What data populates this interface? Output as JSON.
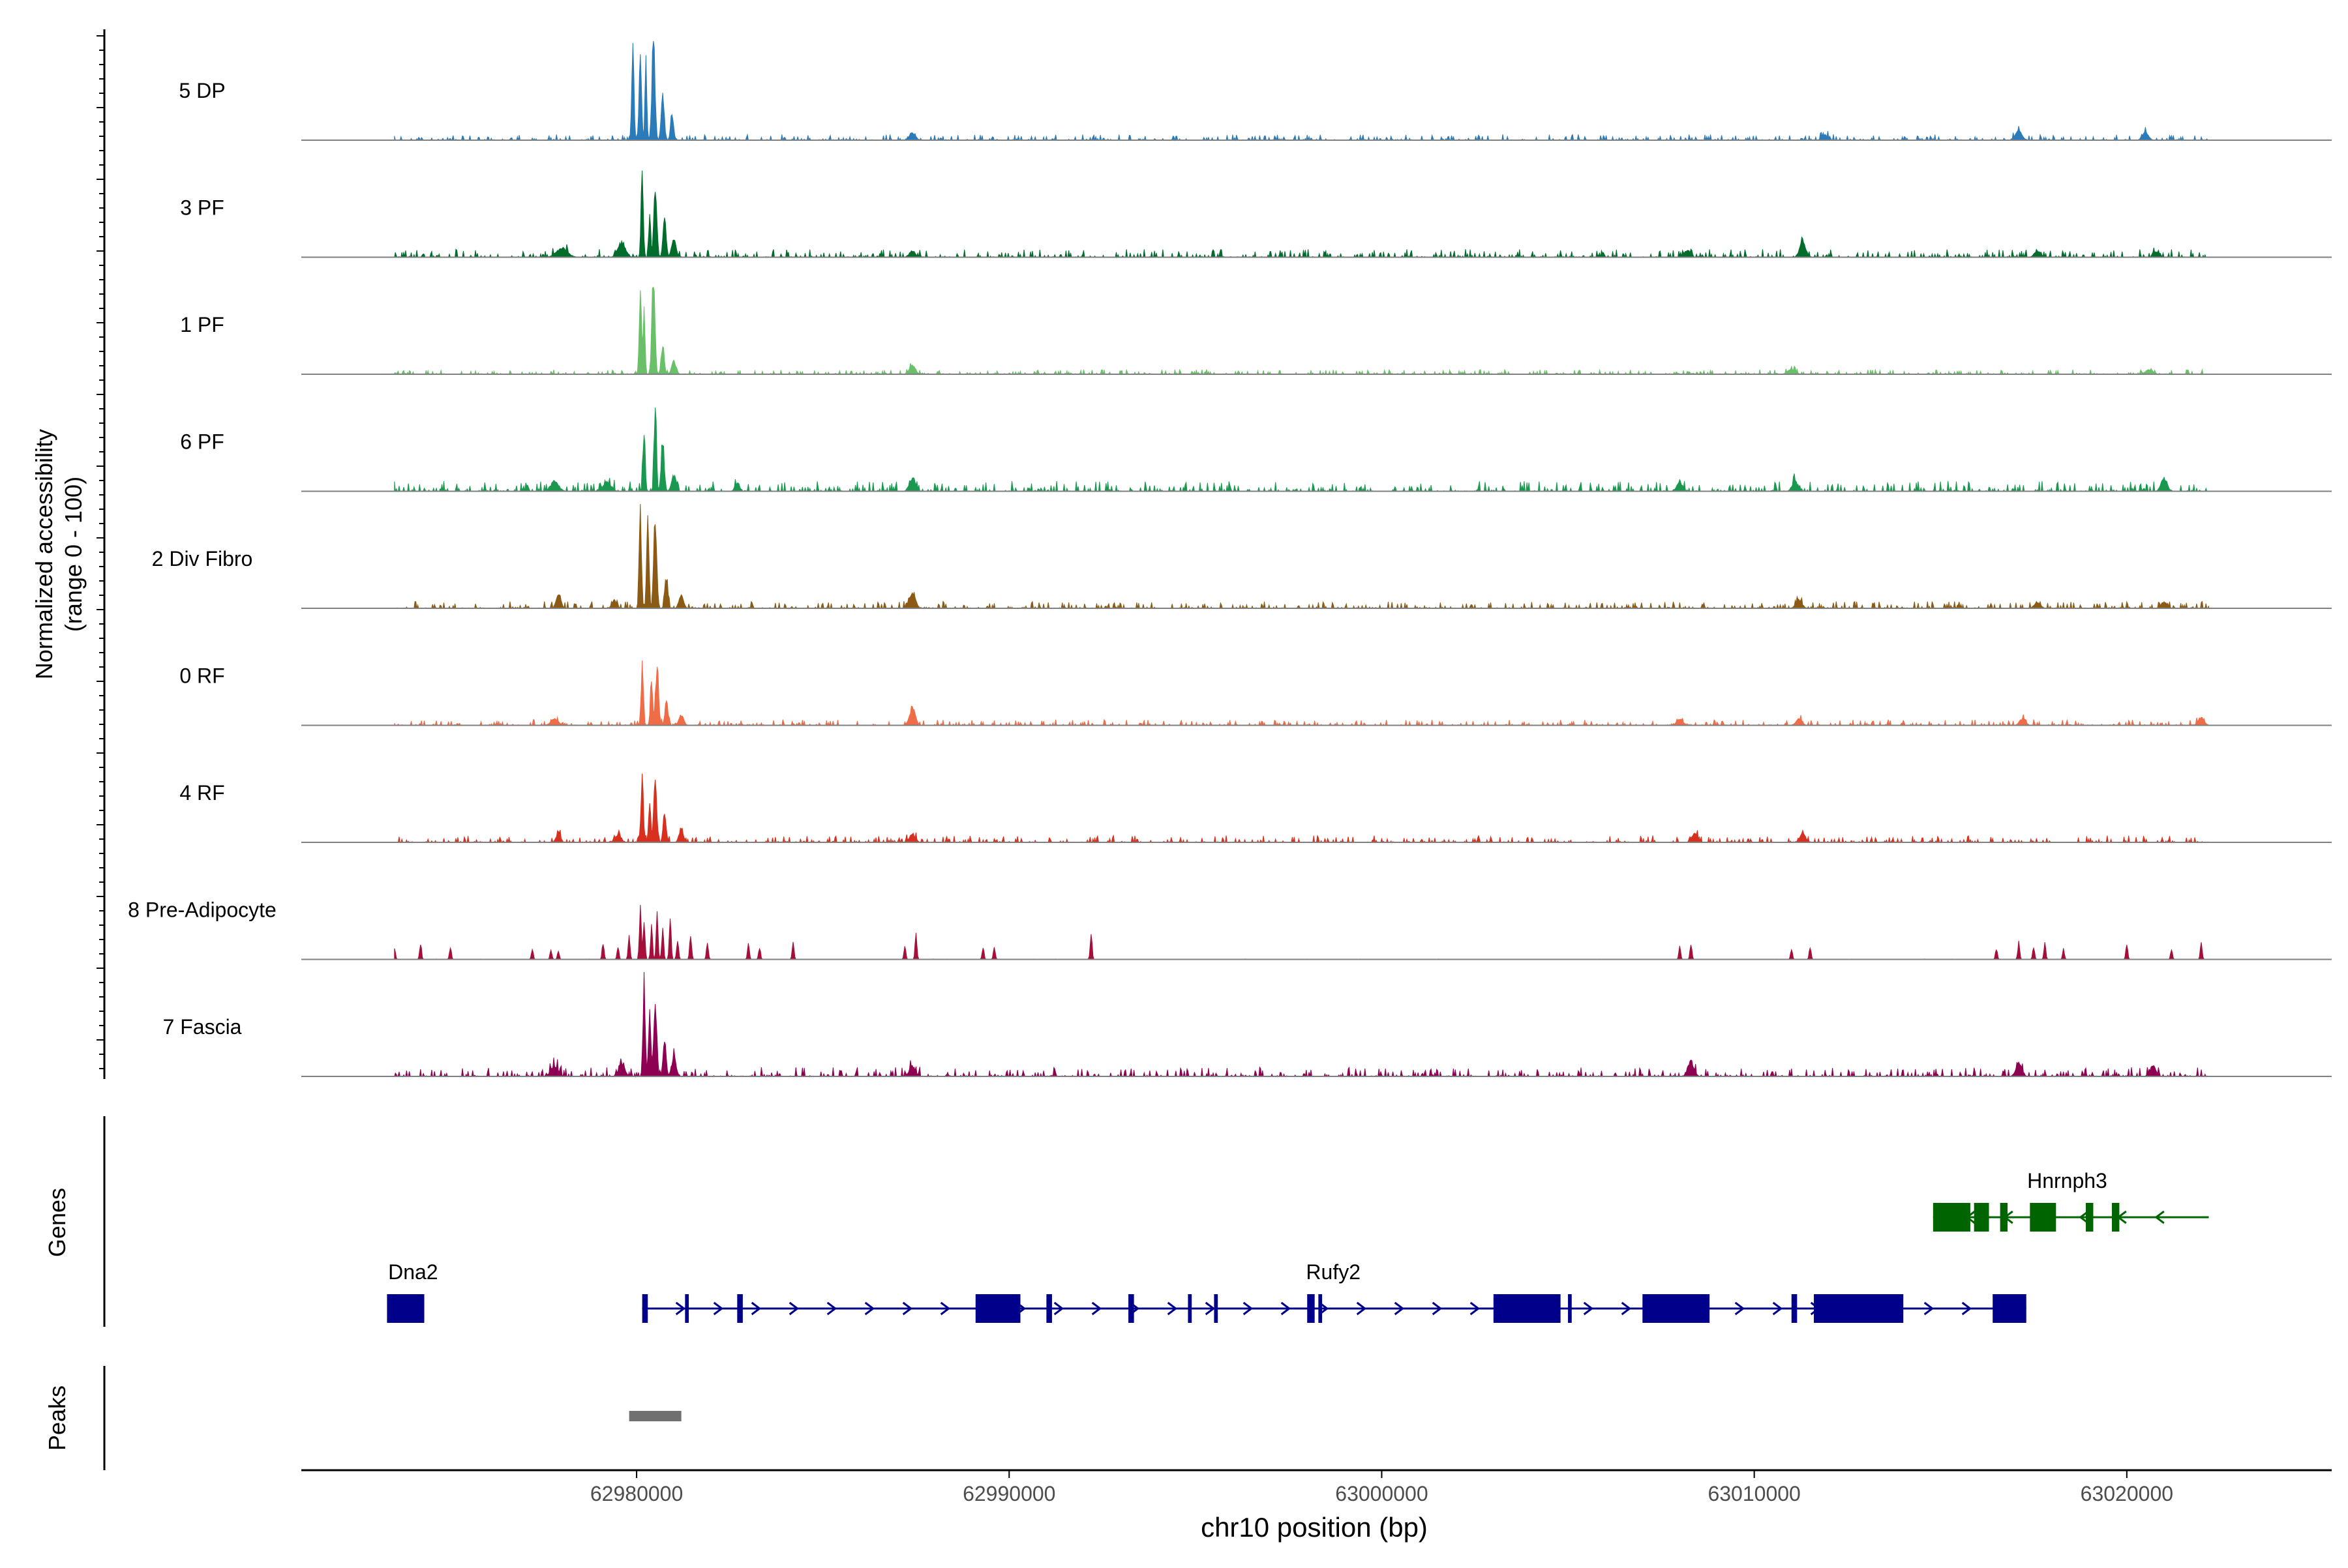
{
  "chart_data": {
    "type": "area",
    "ylabel_line1": "Normalized accessibility",
    "ylabel_line2": "(range 0 - 100)",
    "xlabel": "chr10 position (bp)",
    "xlim": [
      62971000,
      63025500
    ],
    "data_range": [
      62973500,
      63022200
    ],
    "ylim": [
      0,
      100
    ],
    "x_ticks": [
      {
        "value": 62980000,
        "label": "62980000"
      },
      {
        "value": 62990000,
        "label": "62990000"
      },
      {
        "value": 63000000,
        "label": "63000000"
      },
      {
        "value": 63010000,
        "label": "63010000"
      },
      {
        "value": 63020000,
        "label": "63020000"
      }
    ],
    "series": [
      {
        "name": "5 DP",
        "color": "#2b7bba",
        "noise": 2.5,
        "seed": 11,
        "peaks": [
          [
            62979900,
            30,
            80
          ],
          [
            62980100,
            30,
            90
          ],
          [
            62980250,
            25,
            72
          ],
          [
            62980450,
            40,
            94
          ],
          [
            62980700,
            40,
            45
          ],
          [
            62980950,
            40,
            22
          ],
          [
            62987400,
            80,
            7
          ],
          [
            63011900,
            80,
            5
          ],
          [
            63017100,
            80,
            10
          ],
          [
            63020500,
            80,
            7
          ]
        ]
      },
      {
        "name": "3 PF",
        "color": "#006d2c",
        "noise": 3.5,
        "seed": 23,
        "peaks": [
          [
            62978000,
            150,
            8
          ],
          [
            62979600,
            100,
            14
          ],
          [
            62980150,
            30,
            78
          ],
          [
            62980350,
            25,
            42
          ],
          [
            62980500,
            40,
            68
          ],
          [
            62980750,
            40,
            38
          ],
          [
            62981000,
            60,
            16
          ],
          [
            62987400,
            80,
            6
          ],
          [
            63008200,
            80,
            6
          ],
          [
            63011300,
            80,
            14
          ],
          [
            63017600,
            80,
            6
          ],
          [
            63020800,
            80,
            5
          ]
        ]
      },
      {
        "name": "1 PF",
        "color": "#6abf69",
        "noise": 2.0,
        "seed": 37,
        "peaks": [
          [
            62980100,
            30,
            80
          ],
          [
            62980200,
            25,
            58
          ],
          [
            62980450,
            40,
            88
          ],
          [
            62980700,
            40,
            28
          ],
          [
            62981000,
            60,
            12
          ],
          [
            62987400,
            80,
            8
          ],
          [
            63011000,
            100,
            5
          ],
          [
            63020600,
            100,
            4
          ]
        ]
      },
      {
        "name": "6 PF",
        "color": "#1a9850",
        "noise": 4.5,
        "seed": 41,
        "peaks": [
          [
            62977800,
            100,
            10
          ],
          [
            62979200,
            100,
            8
          ],
          [
            62980200,
            30,
            58
          ],
          [
            62980500,
            30,
            88
          ],
          [
            62980700,
            40,
            48
          ],
          [
            62981000,
            60,
            15
          ],
          [
            62982700,
            60,
            8
          ],
          [
            62987400,
            80,
            12
          ],
          [
            63008000,
            80,
            8
          ],
          [
            63011100,
            80,
            9
          ],
          [
            63021000,
            80,
            12
          ]
        ]
      },
      {
        "name": "2 Div Fibro",
        "color": "#8b5a14",
        "noise": 3.0,
        "seed": 53,
        "peaks": [
          [
            62977900,
            60,
            14
          ],
          [
            62979400,
            60,
            8
          ],
          [
            62980100,
            30,
            95
          ],
          [
            62980300,
            30,
            85
          ],
          [
            62980500,
            40,
            90
          ],
          [
            62980800,
            40,
            30
          ],
          [
            62981200,
            60,
            12
          ],
          [
            62987400,
            80,
            15
          ],
          [
            63011200,
            80,
            8
          ],
          [
            63017600,
            80,
            6
          ],
          [
            63021000,
            80,
            6
          ]
        ]
      },
      {
        "name": "0 RF",
        "color": "#ef6c47",
        "noise": 2.5,
        "seed": 67,
        "peaks": [
          [
            62977800,
            100,
            6
          ],
          [
            62980150,
            30,
            55
          ],
          [
            62980400,
            30,
            40
          ],
          [
            62980550,
            40,
            57
          ],
          [
            62980800,
            40,
            22
          ],
          [
            62981200,
            60,
            10
          ],
          [
            62987400,
            80,
            16
          ],
          [
            63008000,
            80,
            6
          ],
          [
            63011200,
            80,
            6
          ],
          [
            63017200,
            80,
            6
          ],
          [
            63022000,
            80,
            7
          ]
        ]
      },
      {
        "name": "4 RF",
        "color": "#d7301f",
        "noise": 3.0,
        "seed": 71,
        "peaks": [
          [
            62977900,
            60,
            8
          ],
          [
            62979500,
            80,
            7
          ],
          [
            62980150,
            30,
            68
          ],
          [
            62980350,
            30,
            38
          ],
          [
            62980500,
            40,
            58
          ],
          [
            62980750,
            40,
            28
          ],
          [
            62981200,
            60,
            12
          ],
          [
            62987400,
            80,
            8
          ],
          [
            63008400,
            80,
            8
          ],
          [
            63011300,
            80,
            8
          ]
        ]
      },
      {
        "name": "8 Pre-Adipocyte",
        "color": "#a50f3a",
        "noise": 0.2,
        "seed": 83,
        "peaks": [
          [
            62973500,
            25,
            12
          ],
          [
            62974200,
            25,
            16
          ],
          [
            62975000,
            25,
            12
          ],
          [
            62977200,
            25,
            10
          ],
          [
            62977700,
            25,
            10
          ],
          [
            62977900,
            25,
            8
          ],
          [
            62979100,
            25,
            16
          ],
          [
            62979500,
            25,
            12
          ],
          [
            62979800,
            25,
            22
          ],
          [
            62980100,
            25,
            50
          ],
          [
            62980200,
            25,
            38
          ],
          [
            62980400,
            25,
            32
          ],
          [
            62980550,
            25,
            44
          ],
          [
            62980700,
            25,
            30
          ],
          [
            62980900,
            25,
            40
          ],
          [
            62981100,
            25,
            20
          ],
          [
            62981450,
            25,
            24
          ],
          [
            62981900,
            25,
            16
          ],
          [
            62983000,
            25,
            14
          ],
          [
            62983300,
            25,
            12
          ],
          [
            62984200,
            25,
            16
          ],
          [
            62987200,
            25,
            12
          ],
          [
            62987500,
            25,
            24
          ],
          [
            62989300,
            25,
            12
          ],
          [
            62989600,
            25,
            12
          ],
          [
            62992200,
            25,
            24
          ],
          [
            63008000,
            25,
            12
          ],
          [
            63008300,
            25,
            14
          ],
          [
            63011000,
            25,
            10
          ],
          [
            63011500,
            25,
            12
          ],
          [
            63016500,
            25,
            10
          ],
          [
            63017100,
            25,
            16
          ],
          [
            63017500,
            25,
            12
          ],
          [
            63017800,
            25,
            16
          ],
          [
            63018300,
            25,
            10
          ],
          [
            63020000,
            25,
            14
          ],
          [
            63021200,
            25,
            10
          ],
          [
            63022000,
            25,
            16
          ]
        ]
      },
      {
        "name": "7 Fascia",
        "color": "#8e0152",
        "noise": 4.0,
        "seed": 97,
        "peaks": [
          [
            62977800,
            100,
            10
          ],
          [
            62979600,
            80,
            12
          ],
          [
            62980200,
            30,
            88
          ],
          [
            62980350,
            30,
            60
          ],
          [
            62980500,
            40,
            75
          ],
          [
            62980750,
            40,
            35
          ],
          [
            62981000,
            60,
            18
          ],
          [
            62987400,
            80,
            10
          ],
          [
            63008300,
            80,
            14
          ],
          [
            63017100,
            80,
            12
          ],
          [
            63020700,
            80,
            10
          ]
        ]
      }
    ],
    "genes": {
      "label": "Genes",
      "items": [
        {
          "name": "Dna2",
          "strand": "",
          "color": "#00008b",
          "row": 2,
          "exons": [
            [
              62973300,
              62974300
            ]
          ]
        },
        {
          "name": "Rufy2",
          "strand": "+",
          "color": "#00008b",
          "row": 2,
          "intron": [
            62980150,
            63017300
          ],
          "exons": [
            [
              62980150,
              62980300
            ],
            [
              62981300,
              62981400
            ],
            [
              62982700,
              62982850
            ],
            [
              62989100,
              62990300
            ],
            [
              62991000,
              62991150
            ],
            [
              62993200,
              62993350
            ],
            [
              62994800,
              62994900
            ],
            [
              62995500,
              62995600
            ],
            [
              62998000,
              62998200
            ],
            [
              62998300,
              62998400
            ],
            [
              63004000,
              63004200
            ],
            [
              63005000,
              63005100
            ],
            [
              63007000,
              63008800
            ],
            [
              63008500,
              63008700
            ],
            [
              63011000,
              63011150
            ],
            [
              63013700,
              63014000
            ],
            [
              63017100,
              63017300
            ],
            [
              63012400,
              63012500
            ]
          ],
          "big_exons": [
            [
              62989100,
              62990300
            ],
            [
              63003000,
              63004800
            ],
            [
              63007700,
              63008200
            ],
            [
              63011600,
              63014000
            ],
            [
              63016400,
              63017300
            ]
          ]
        },
        {
          "name": "Hnrnph3",
          "strand": "-",
          "color": "#006400",
          "row": 1,
          "intron": [
            63014800,
            63022200
          ],
          "exons": [
            [
              63016600,
              63016800
            ],
            [
              63018900,
              63019100
            ],
            [
              63019600,
              63019800
            ],
            [
              63017600,
              63017700
            ]
          ],
          "big_exons": [
            [
              63014800,
              63015800
            ],
            [
              63015900,
              63016300
            ],
            [
              63017400,
              63018100
            ]
          ]
        }
      ]
    },
    "peaks_track": {
      "label": "Peaks",
      "color": "#707070",
      "regions": [
        [
          62979800,
          62981200
        ]
      ]
    }
  }
}
